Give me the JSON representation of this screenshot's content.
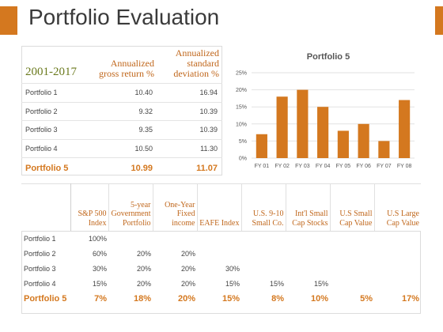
{
  "header": {
    "title": "Portfolio Evaluation"
  },
  "table1": {
    "period": "2001-2017",
    "columns": [
      "Annualized gross return %",
      "Annualized standard deviation %"
    ],
    "rows": [
      {
        "label": "Portfolio 1",
        "return": "10.40",
        "sd": "16.94"
      },
      {
        "label": "Portfolio 2",
        "return": "9.32",
        "sd": "10.39"
      },
      {
        "label": "Portfolio 3",
        "return": "9.35",
        "sd": "10.39"
      },
      {
        "label": "Portfolio 4",
        "return": "10.50",
        "sd": "11.30"
      },
      {
        "label": "Portfolio 5",
        "return": "10.99",
        "sd": "11.07"
      }
    ]
  },
  "table2": {
    "columns": [
      "S&P 500 Index",
      "5-year Government Portfolio",
      "One-Year Fixed income",
      "EAFE Index",
      "U.S. 9-10 Small Co.",
      "Int'l Small Cap Stocks",
      "U.S Small Cap Value",
      "U.S Large Cap Value"
    ],
    "rows": [
      {
        "label": "Portfolio 1",
        "values": [
          "100%",
          "",
          "",
          "",
          "",
          "",
          "",
          ""
        ]
      },
      {
        "label": "Portfolio 2",
        "values": [
          "60%",
          "20%",
          "20%",
          "",
          "",
          "",
          "",
          ""
        ]
      },
      {
        "label": "Portfolio 3",
        "values": [
          "30%",
          "20%",
          "20%",
          "30%",
          "",
          "",
          "",
          ""
        ]
      },
      {
        "label": "Portfolio 4",
        "values": [
          "15%",
          "20%",
          "20%",
          "15%",
          "15%",
          "15%",
          "",
          ""
        ]
      },
      {
        "label": "Portfolio 5",
        "values": [
          "7%",
          "18%",
          "20%",
          "15%",
          "8%",
          "10%",
          "5%",
          "17%"
        ]
      }
    ]
  },
  "chart_data": {
    "type": "bar",
    "title": "Portfolio 5",
    "categories": [
      "FY 01",
      "FY 02",
      "FY 03",
      "FY 04",
      "FY 05",
      "FY 06",
      "FY 07",
      "FY 08"
    ],
    "values": [
      7,
      18,
      20,
      15,
      8,
      10,
      5,
      17
    ],
    "ylim": [
      0,
      25
    ],
    "yticks": [
      "0%",
      "5%",
      "10%",
      "15%",
      "20%",
      "25%"
    ],
    "bar_color": "#d4781f",
    "grid": true
  },
  "colors": {
    "accent": "#d4781f",
    "period": "#6b7a1e"
  }
}
